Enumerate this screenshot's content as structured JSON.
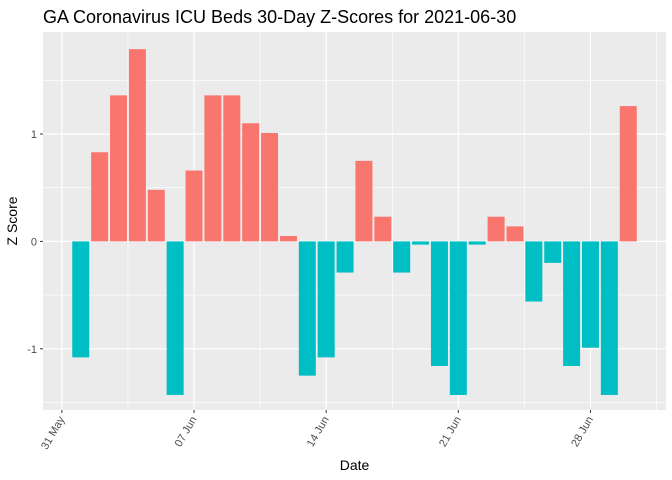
{
  "chart_data": {
    "type": "bar",
    "title": "GA Coronavirus ICU Beds 30-Day Z-Scores for 2021-06-30",
    "xlabel": "Date",
    "ylabel": "Z Score",
    "x_ticks": [
      {
        "date": "2021-05-31",
        "label": "31 May"
      },
      {
        "date": "2021-06-07",
        "label": "07 Jun"
      },
      {
        "date": "2021-06-14",
        "label": "14 Jun"
      },
      {
        "date": "2021-06-21",
        "label": "21 Jun"
      },
      {
        "date": "2021-06-28",
        "label": "28 Jun"
      }
    ],
    "y_ticks": [
      {
        "value": -1,
        "label": "-1"
      },
      {
        "value": 0,
        "label": "0"
      },
      {
        "value": 1,
        "label": "1"
      }
    ],
    "xlim": [
      "2021-05-30",
      "2021-07-02"
    ],
    "ylim": [
      -1.57,
      1.95
    ],
    "grid": true,
    "legend": "none",
    "colors": {
      "positive": "#F8766D",
      "negative": "#00BFC4",
      "panel": "#EBEBEB",
      "grid": "#FFFFFF"
    },
    "x": [
      "2021-06-01",
      "2021-06-02",
      "2021-06-03",
      "2021-06-04",
      "2021-06-05",
      "2021-06-06",
      "2021-06-07",
      "2021-06-08",
      "2021-06-09",
      "2021-06-10",
      "2021-06-11",
      "2021-06-12",
      "2021-06-13",
      "2021-06-14",
      "2021-06-15",
      "2021-06-16",
      "2021-06-17",
      "2021-06-18",
      "2021-06-19",
      "2021-06-20",
      "2021-06-21",
      "2021-06-22",
      "2021-06-23",
      "2021-06-24",
      "2021-06-25",
      "2021-06-26",
      "2021-06-27",
      "2021-06-28",
      "2021-06-29",
      "2021-06-30"
    ],
    "values": [
      -1.08,
      0.83,
      1.36,
      1.79,
      0.48,
      -1.43,
      0.66,
      1.36,
      1.36,
      1.1,
      1.01,
      0.05,
      -1.25,
      -1.08,
      -0.29,
      0.75,
      0.23,
      -0.29,
      -0.03,
      -1.16,
      -1.43,
      -0.03,
      0.23,
      0.14,
      -0.56,
      -0.2,
      -1.16,
      -0.99,
      -1.43,
      1.26
    ]
  }
}
